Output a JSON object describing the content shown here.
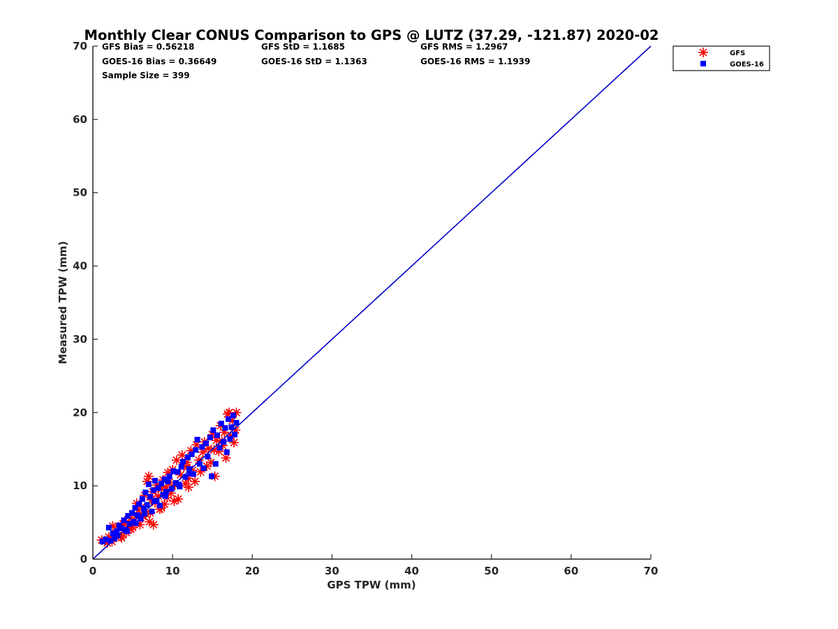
{
  "chart_data": {
    "type": "scatter",
    "title": "Monthly Clear CONUS Comparison to GPS @ LUTZ (37.29, -121.87) 2020-02",
    "xlabel": "GPS TPW (mm)",
    "ylabel": "Measured TPW (mm)",
    "xlim": [
      0,
      70
    ],
    "ylim": [
      0,
      70
    ],
    "xticks": [
      "0",
      "10",
      "20",
      "30",
      "40",
      "50",
      "60",
      "70"
    ],
    "yticks": [
      "0",
      "10",
      "20",
      "30",
      "40",
      "50",
      "60",
      "70"
    ],
    "grid": false,
    "legend_position": "top-right",
    "stats": {
      "gfs_bias": "GFS Bias = 0.56218",
      "gfs_std": "GFS StD = 1.1685",
      "gfs_rms": "GFS RMS = 1.2967",
      "goes_bias": "GOES-16 Bias = 0.36649",
      "goes_std": "GOES-16 StD = 1.1363",
      "goes_rms": "GOES-16 RMS = 1.1939",
      "sample_size": "Sample Size = 399"
    },
    "reference_line": {
      "x": [
        0,
        70
      ],
      "y": [
        0,
        70
      ],
      "color": "#0000cc"
    },
    "series": [
      {
        "name": "GFS",
        "marker": "asterisk",
        "color": "#ff0000",
        "points": [
          [
            1.1,
            2.6
          ],
          [
            1.5,
            2.5
          ],
          [
            1.8,
            2.2
          ],
          [
            2.0,
            3.0
          ],
          [
            2.3,
            2.8
          ],
          [
            2.5,
            4.5
          ],
          [
            2.8,
            3.5
          ],
          [
            3.0,
            3.9
          ],
          [
            3.2,
            4.4
          ],
          [
            3.5,
            3.1
          ],
          [
            3.8,
            4.8
          ],
          [
            4.0,
            5.2
          ],
          [
            4.2,
            3.6
          ],
          [
            4.5,
            4.6
          ],
          [
            4.7,
            5.6
          ],
          [
            5.0,
            4.3
          ],
          [
            5.2,
            6.1
          ],
          [
            5.4,
            5.0
          ],
          [
            5.5,
            7.6
          ],
          [
            5.7,
            6.7
          ],
          [
            5.9,
            4.7
          ],
          [
            6.1,
            7.1
          ],
          [
            6.3,
            5.8
          ],
          [
            6.5,
            8.7
          ],
          [
            6.6,
            6.2
          ],
          [
            6.8,
            10.6
          ],
          [
            7.0,
            11.3
          ],
          [
            7.1,
            5.1
          ],
          [
            7.3,
            8.1
          ],
          [
            7.5,
            9.2
          ],
          [
            7.6,
            4.7
          ],
          [
            7.8,
            7.7
          ],
          [
            8.0,
            10.1
          ],
          [
            8.2,
            8.6
          ],
          [
            8.4,
            6.8
          ],
          [
            8.6,
            9.6
          ],
          [
            8.8,
            10.8
          ],
          [
            9.0,
            7.5
          ],
          [
            9.2,
            9.8
          ],
          [
            9.4,
            11.8
          ],
          [
            9.6,
            10.5
          ],
          [
            9.8,
            9.0
          ],
          [
            10.0,
            12.2
          ],
          [
            10.3,
            10.1
          ],
          [
            10.5,
            13.5
          ],
          [
            10.7,
            8.2
          ],
          [
            11.0,
            11.5
          ],
          [
            11.2,
            14.2
          ],
          [
            11.4,
            12.8
          ],
          [
            11.6,
            10.3
          ],
          [
            11.8,
            13.2
          ],
          [
            12.0,
            11.0
          ],
          [
            12.3,
            14.8
          ],
          [
            12.5,
            12.1
          ],
          [
            12.8,
            10.6
          ],
          [
            13.0,
            15.6
          ],
          [
            13.3,
            13.5
          ],
          [
            13.5,
            11.9
          ],
          [
            13.8,
            14.6
          ],
          [
            14.0,
            16.0
          ],
          [
            14.3,
            12.7
          ],
          [
            14.5,
            15.1
          ],
          [
            14.8,
            13.2
          ],
          [
            15.0,
            17.0
          ],
          [
            15.3,
            11.3
          ],
          [
            15.5,
            16.2
          ],
          [
            15.8,
            14.7
          ],
          [
            16.0,
            18.2
          ],
          [
            16.3,
            15.5
          ],
          [
            16.5,
            17.3
          ],
          [
            16.7,
            13.8
          ],
          [
            16.9,
            19.8
          ],
          [
            17.1,
            20.0
          ],
          [
            17.3,
            16.8
          ],
          [
            17.5,
            18.9
          ],
          [
            17.7,
            15.9
          ],
          [
            17.9,
            17.6
          ],
          [
            18.0,
            20.0
          ],
          [
            16.2,
            16.1
          ],
          [
            15.2,
            14.9
          ],
          [
            12.0,
            9.8
          ],
          [
            10.2,
            7.9
          ],
          [
            8.6,
            7.0
          ],
          [
            7.2,
            6.3
          ],
          [
            6.0,
            5.7
          ],
          [
            4.8,
            4.1
          ],
          [
            3.6,
            2.9
          ],
          [
            2.4,
            2.4
          ],
          [
            9.3,
            8.4
          ],
          [
            11.8,
            12.5
          ]
        ]
      },
      {
        "name": "GOES-16",
        "marker": "square",
        "color": "#0000ff",
        "points": [
          [
            1.2,
            2.4
          ],
          [
            1.6,
            2.7
          ],
          [
            2.0,
            4.3
          ],
          [
            2.2,
            2.5
          ],
          [
            2.5,
            3.5
          ],
          [
            2.7,
            2.8
          ],
          [
            3.0,
            3.8
          ],
          [
            3.3,
            4.6
          ],
          [
            3.6,
            4.2
          ],
          [
            3.9,
            5.3
          ],
          [
            4.1,
            4.0
          ],
          [
            4.4,
            5.9
          ],
          [
            4.6,
            4.8
          ],
          [
            4.9,
            6.3
          ],
          [
            5.1,
            5.1
          ],
          [
            5.3,
            7.0
          ],
          [
            5.6,
            6.0
          ],
          [
            5.8,
            7.5
          ],
          [
            6.0,
            5.5
          ],
          [
            6.2,
            8.2
          ],
          [
            6.4,
            6.9
          ],
          [
            6.6,
            9.1
          ],
          [
            6.8,
            7.4
          ],
          [
            7.0,
            10.2
          ],
          [
            7.2,
            8.5
          ],
          [
            7.4,
            6.5
          ],
          [
            7.6,
            9.4
          ],
          [
            7.8,
            10.7
          ],
          [
            8.0,
            8.0
          ],
          [
            8.2,
            9.7
          ],
          [
            8.4,
            7.3
          ],
          [
            8.6,
            10.3
          ],
          [
            8.8,
            8.8
          ],
          [
            9.0,
            10.9
          ],
          [
            9.2,
            9.2
          ],
          [
            9.4,
            10.6
          ],
          [
            9.6,
            11.3
          ],
          [
            9.9,
            9.6
          ],
          [
            10.1,
            12.0
          ],
          [
            10.4,
            10.4
          ],
          [
            10.6,
            11.9
          ],
          [
            10.9,
            9.9
          ],
          [
            11.1,
            12.6
          ],
          [
            11.3,
            13.3
          ],
          [
            11.6,
            11.2
          ],
          [
            11.9,
            13.9
          ],
          [
            12.1,
            12.3
          ],
          [
            12.4,
            14.3
          ],
          [
            12.6,
            11.6
          ],
          [
            12.9,
            14.9
          ],
          [
            13.1,
            16.3
          ],
          [
            13.4,
            13.0
          ],
          [
            13.7,
            15.3
          ],
          [
            13.9,
            12.4
          ],
          [
            14.2,
            15.8
          ],
          [
            14.4,
            14.0
          ],
          [
            14.7,
            16.6
          ],
          [
            14.9,
            11.3
          ],
          [
            15.1,
            17.6
          ],
          [
            15.4,
            13.0
          ],
          [
            15.6,
            16.9
          ],
          [
            15.9,
            15.2
          ],
          [
            16.1,
            18.5
          ],
          [
            16.4,
            16.0
          ],
          [
            16.6,
            17.9
          ],
          [
            16.8,
            14.6
          ],
          [
            17.0,
            19.1
          ],
          [
            17.2,
            16.4
          ],
          [
            17.4,
            18.0
          ],
          [
            17.6,
            19.6
          ],
          [
            17.8,
            17.0
          ],
          [
            18.0,
            18.6
          ],
          [
            9.1,
            8.6
          ],
          [
            7.7,
            7.9
          ],
          [
            6.5,
            6.2
          ],
          [
            5.4,
            4.9
          ],
          [
            4.3,
            3.8
          ],
          [
            3.1,
            3.2
          ],
          [
            10.8,
            10.2
          ],
          [
            12.2,
            11.7
          ]
        ]
      }
    ]
  }
}
